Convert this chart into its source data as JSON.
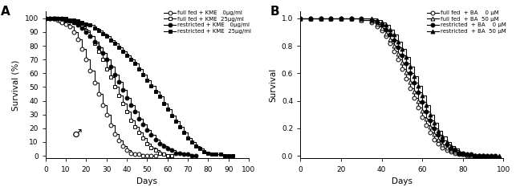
{
  "panel_A": {
    "title": "A",
    "xlabel": "Days",
    "ylabel": "Survival (%)",
    "xlim": [
      0,
      100
    ],
    "ylim": [
      -2,
      105
    ],
    "yticks": [
      0,
      10,
      20,
      30,
      40,
      50,
      60,
      70,
      80,
      90,
      100
    ],
    "xticks": [
      0,
      10,
      20,
      30,
      40,
      50,
      60,
      70,
      80,
      90,
      100
    ],
    "legend": [
      {
        "label": "full fed + KME   0μg/ml",
        "marker": "o",
        "fill": false
      },
      {
        "label": "full fed + KME  25μg/ml",
        "marker": "s",
        "fill": false
      },
      {
        "label": "restricted + KME   0μg/ml",
        "marker": "o",
        "fill": true
      },
      {
        "label": "restricted + KME  25μg/ml",
        "marker": "s",
        "fill": true
      }
    ],
    "curves": [
      {
        "x": [
          0,
          2,
          4,
          5,
          6,
          7,
          8,
          10,
          12,
          14,
          16,
          18,
          20,
          22,
          24,
          26,
          28,
          30,
          32,
          34,
          36,
          38,
          40,
          42,
          44,
          46,
          48,
          50,
          52,
          54
        ],
        "y": [
          100,
          100,
          100,
          100,
          99,
          98,
          97,
          96,
          94,
          90,
          85,
          78,
          70,
          62,
          53,
          45,
          37,
          30,
          22,
          16,
          11,
          7,
          4,
          2,
          1,
          1,
          0,
          0,
          0,
          0
        ],
        "marker": "o",
        "fill": false
      },
      {
        "x": [
          0,
          2,
          4,
          6,
          8,
          10,
          12,
          14,
          16,
          18,
          20,
          22,
          24,
          26,
          28,
          30,
          32,
          34,
          36,
          38,
          40,
          42,
          44,
          46,
          48,
          50,
          52,
          54,
          56,
          58,
          60,
          62
        ],
        "y": [
          100,
          100,
          100,
          100,
          100,
          99,
          98,
          97,
          96,
          94,
          91,
          87,
          82,
          76,
          70,
          63,
          57,
          50,
          44,
          38,
          32,
          26,
          21,
          17,
          13,
          9,
          6,
          4,
          2,
          1,
          0,
          0
        ],
        "marker": "s",
        "fill": false
      },
      {
        "x": [
          0,
          2,
          4,
          6,
          8,
          10,
          12,
          14,
          16,
          18,
          20,
          22,
          24,
          26,
          28,
          30,
          32,
          34,
          36,
          38,
          40,
          42,
          44,
          46,
          48,
          50,
          52,
          54,
          56,
          58,
          60,
          62,
          64,
          66,
          68,
          70,
          72,
          74
        ],
        "y": [
          100,
          100,
          100,
          100,
          100,
          99,
          98,
          97,
          95,
          93,
          90,
          87,
          83,
          79,
          75,
          70,
          65,
          59,
          54,
          48,
          42,
          37,
          32,
          27,
          23,
          19,
          15,
          12,
          9,
          7,
          5,
          4,
          2,
          2,
          1,
          1,
          0,
          0
        ],
        "marker": "o",
        "fill": true
      },
      {
        "x": [
          0,
          2,
          4,
          6,
          8,
          10,
          12,
          14,
          16,
          18,
          20,
          22,
          24,
          26,
          28,
          30,
          32,
          34,
          36,
          38,
          40,
          42,
          44,
          46,
          48,
          50,
          52,
          54,
          56,
          58,
          60,
          62,
          64,
          66,
          68,
          70,
          72,
          74,
          76,
          78,
          80,
          82,
          84,
          86,
          88,
          90,
          92
        ],
        "y": [
          100,
          100,
          100,
          100,
          100,
          100,
          99,
          99,
          98,
          97,
          96,
          95,
          93,
          91,
          89,
          87,
          84,
          82,
          79,
          76,
          73,
          70,
          67,
          63,
          59,
          55,
          51,
          47,
          43,
          38,
          34,
          29,
          25,
          21,
          17,
          13,
          10,
          7,
          5,
          3,
          2,
          1,
          1,
          1,
          0,
          0,
          0
        ],
        "marker": "s",
        "fill": true
      }
    ]
  },
  "panel_B": {
    "title": "B",
    "xlabel": "Days",
    "ylabel": "Survival",
    "xlim": [
      0,
      100
    ],
    "ylim": [
      -0.02,
      1.05
    ],
    "yticks": [
      0.0,
      0.2,
      0.4,
      0.6,
      0.8,
      1.0
    ],
    "xticks": [
      0,
      20,
      40,
      60,
      80,
      100
    ],
    "legend": [
      {
        "label": "full fed  + BA    0 μM",
        "marker": "o",
        "fill": false
      },
      {
        "label": "full fed  + BA  50 μM",
        "marker": "^",
        "fill": false
      },
      {
        "label": "restricted  + BA    0 μM",
        "marker": "o",
        "fill": true
      },
      {
        "label": "restricted  + BA  50 μM",
        "marker": "^",
        "fill": true
      }
    ],
    "curves": [
      {
        "x": [
          0,
          5,
          10,
          15,
          20,
          25,
          30,
          35,
          38,
          40,
          42,
          44,
          46,
          48,
          50,
          52,
          54,
          56,
          58,
          60,
          62,
          64,
          66,
          68,
          70,
          72,
          74,
          76,
          78,
          80,
          82,
          84,
          86,
          88,
          90
        ],
        "y": [
          1.0,
          1.0,
          1.0,
          1.0,
          1.0,
          1.0,
          0.99,
          0.97,
          0.94,
          0.91,
          0.87,
          0.82,
          0.76,
          0.7,
          0.63,
          0.56,
          0.49,
          0.42,
          0.35,
          0.28,
          0.22,
          0.17,
          0.12,
          0.09,
          0.06,
          0.04,
          0.03,
          0.02,
          0.01,
          0.01,
          0.0,
          0.0,
          0.0,
          0.0,
          0.0
        ],
        "marker": "o",
        "fill": false
      },
      {
        "x": [
          0,
          5,
          10,
          15,
          20,
          25,
          30,
          35,
          38,
          40,
          42,
          44,
          46,
          48,
          50,
          52,
          54,
          56,
          58,
          60,
          62,
          64,
          66,
          68,
          70,
          72,
          74,
          76,
          78,
          80,
          82,
          84,
          86,
          88,
          90,
          92,
          94
        ],
        "y": [
          1.0,
          1.0,
          1.0,
          1.0,
          1.0,
          1.0,
          0.99,
          0.98,
          0.96,
          0.93,
          0.89,
          0.85,
          0.8,
          0.74,
          0.68,
          0.61,
          0.54,
          0.47,
          0.4,
          0.33,
          0.27,
          0.21,
          0.16,
          0.12,
          0.08,
          0.06,
          0.04,
          0.03,
          0.02,
          0.01,
          0.01,
          0.0,
          0.0,
          0.0,
          0.0,
          0.0,
          0.0
        ],
        "marker": "^",
        "fill": false
      },
      {
        "x": [
          0,
          5,
          10,
          15,
          20,
          25,
          30,
          35,
          38,
          40,
          42,
          44,
          46,
          48,
          50,
          52,
          54,
          56,
          58,
          60,
          62,
          64,
          66,
          68,
          70,
          72,
          74,
          76,
          78,
          80,
          82,
          84,
          86,
          88,
          90,
          92,
          94,
          96
        ],
        "y": [
          1.0,
          1.0,
          1.0,
          1.0,
          1.0,
          1.0,
          1.0,
          0.99,
          0.97,
          0.95,
          0.92,
          0.88,
          0.84,
          0.79,
          0.73,
          0.67,
          0.6,
          0.53,
          0.46,
          0.39,
          0.32,
          0.26,
          0.2,
          0.15,
          0.11,
          0.08,
          0.05,
          0.04,
          0.02,
          0.02,
          0.01,
          0.01,
          0.0,
          0.0,
          0.0,
          0.0,
          0.0,
          0.0
        ],
        "marker": "o",
        "fill": true
      },
      {
        "x": [
          0,
          5,
          10,
          15,
          20,
          25,
          30,
          35,
          38,
          40,
          42,
          44,
          46,
          48,
          50,
          52,
          54,
          56,
          58,
          60,
          62,
          64,
          66,
          68,
          70,
          72,
          74,
          76,
          78,
          80,
          82,
          84,
          86,
          88,
          90,
          92,
          94,
          96,
          98
        ],
        "y": [
          1.0,
          1.0,
          1.0,
          1.0,
          1.0,
          1.0,
          1.0,
          1.0,
          0.99,
          0.97,
          0.95,
          0.92,
          0.88,
          0.83,
          0.78,
          0.72,
          0.65,
          0.58,
          0.51,
          0.44,
          0.37,
          0.3,
          0.24,
          0.18,
          0.14,
          0.1,
          0.07,
          0.05,
          0.03,
          0.02,
          0.01,
          0.01,
          0.0,
          0.0,
          0.0,
          0.0,
          0.0,
          0.0,
          0.0
        ],
        "marker": "^",
        "fill": true
      }
    ]
  }
}
